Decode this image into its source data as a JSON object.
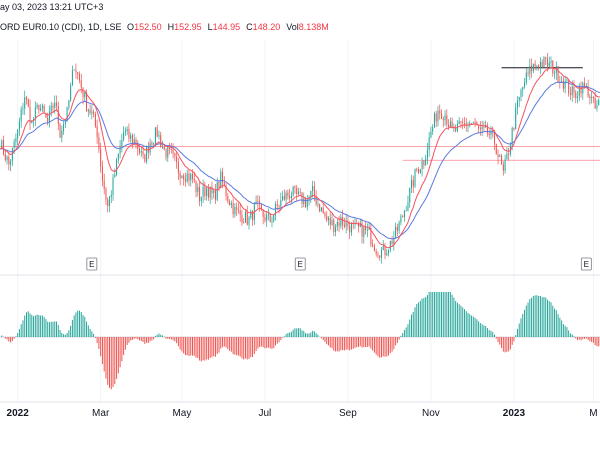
{
  "header": {
    "timestamp": "ay 03, 2023 13:21 UTC+3",
    "symbol": "ORD EUR0.10 (CDI), 1D, LSE",
    "ohlc": [
      {
        "k": "O",
        "v": "152.50"
      },
      {
        "k": "H",
        "v": "152.95"
      },
      {
        "k": "L",
        "v": "144.95"
      },
      {
        "k": "C",
        "v": "148.20"
      },
      {
        "k": "Vol",
        "v": "8.138M"
      }
    ]
  },
  "colors": {
    "up": "#26a69a",
    "down": "#ef5350",
    "ma_fast": "#f7525f",
    "ma_slow": "#5b7be0",
    "level_red": "#f7525f",
    "level_black": "#131722"
  },
  "chart_data": {
    "type": "candlestick",
    "x_ticks": [
      {
        "label": "2022",
        "t": 10,
        "bold": true
      },
      {
        "label": "Mar",
        "t": 57,
        "bold": false
      },
      {
        "label": "May",
        "t": 103,
        "bold": false
      },
      {
        "label": "Jul",
        "t": 150,
        "bold": false
      },
      {
        "label": "Sep",
        "t": 197,
        "bold": false
      },
      {
        "label": "Nov",
        "t": 244,
        "bold": false
      },
      {
        "label": "2023",
        "t": 291,
        "bold": true
      },
      {
        "label": "M",
        "t": 336,
        "bold": false
      }
    ],
    "earnings_markers": [
      52,
      170,
      332
    ],
    "horizontal_levels": [
      {
        "price": 137,
        "from_t": 0,
        "to_t": 342,
        "color": "level_red"
      },
      {
        "price": 134,
        "from_t": 228,
        "to_t": 342,
        "color": "level_red"
      },
      {
        "price": 154,
        "from_t": 284,
        "to_t": 330,
        "color": "level_black"
      }
    ],
    "price_range": [
      112,
      160
    ],
    "osc_range": [
      -30,
      40
    ],
    "price_anchors": [
      [
        0,
        138
      ],
      [
        5,
        133
      ],
      [
        10,
        140
      ],
      [
        14,
        148
      ],
      [
        18,
        142
      ],
      [
        22,
        146
      ],
      [
        27,
        142
      ],
      [
        31,
        147
      ],
      [
        34,
        140
      ],
      [
        38,
        144
      ],
      [
        42,
        155
      ],
      [
        46,
        150
      ],
      [
        49,
        146
      ],
      [
        52,
        144
      ],
      [
        55,
        140
      ],
      [
        58,
        130
      ],
      [
        61,
        124
      ],
      [
        64,
        129
      ],
      [
        67,
        135
      ],
      [
        70,
        140
      ],
      [
        73,
        139
      ],
      [
        77,
        138
      ],
      [
        81,
        134
      ],
      [
        85,
        138
      ],
      [
        89,
        140
      ],
      [
        93,
        136
      ],
      [
        97,
        135
      ],
      [
        101,
        132
      ],
      [
        105,
        131
      ],
      [
        109,
        130
      ],
      [
        113,
        126
      ],
      [
        117,
        128
      ],
      [
        121,
        126
      ],
      [
        125,
        130
      ],
      [
        129,
        126
      ],
      [
        133,
        123
      ],
      [
        137,
        122
      ],
      [
        141,
        121
      ],
      [
        145,
        124
      ],
      [
        149,
        122
      ],
      [
        153,
        121
      ],
      [
        157,
        124
      ],
      [
        161,
        126
      ],
      [
        165,
        127
      ],
      [
        169,
        126
      ],
      [
        173,
        125
      ],
      [
        177,
        127
      ],
      [
        181,
        124
      ],
      [
        185,
        121
      ],
      [
        189,
        120
      ],
      [
        193,
        121
      ],
      [
        197,
        120
      ],
      [
        201,
        119
      ],
      [
        205,
        119
      ],
      [
        209,
        118
      ],
      [
        213,
        115
      ],
      [
        217,
        114
      ],
      [
        221,
        116
      ],
      [
        224,
        118
      ],
      [
        228,
        122
      ],
      [
        232,
        127
      ],
      [
        236,
        132
      ],
      [
        240,
        134
      ],
      [
        244,
        140
      ],
      [
        248,
        145
      ],
      [
        252,
        144
      ],
      [
        256,
        140
      ],
      [
        260,
        141
      ],
      [
        264,
        142
      ],
      [
        268,
        142
      ],
      [
        272,
        140
      ],
      [
        276,
        140
      ],
      [
        280,
        138
      ],
      [
        285,
        131
      ],
      [
        289,
        138
      ],
      [
        293,
        146
      ],
      [
        297,
        151
      ],
      [
        301,
        154
      ],
      [
        305,
        155
      ],
      [
        309,
        155
      ],
      [
        313,
        154
      ],
      [
        317,
        152
      ],
      [
        321,
        150
      ],
      [
        325,
        148
      ],
      [
        329,
        150
      ],
      [
        333,
        149
      ],
      [
        337,
        145
      ],
      [
        342,
        148
      ]
    ]
  }
}
